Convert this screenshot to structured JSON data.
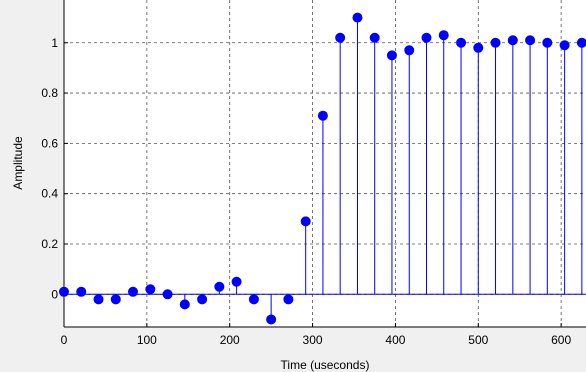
{
  "chart_data": {
    "type": "stem",
    "xlabel": "Time (useconds)",
    "ylabel": "Amplitude",
    "title": "",
    "xlim": [
      0,
      630
    ],
    "ylim": [
      -0.13,
      1.17
    ],
    "grid": true,
    "xticks": [
      0,
      100,
      200,
      300,
      400,
      500,
      600
    ],
    "yticks": [
      0,
      0.2,
      0.4,
      0.6,
      0.8,
      1
    ],
    "ytick_labels": [
      "0",
      "0.2",
      "0.4",
      "0.6",
      "0.8",
      "1"
    ],
    "x": [
      0,
      20.8,
      41.7,
      62.5,
      83.3,
      104.2,
      125,
      145.8,
      166.7,
      187.5,
      208.3,
      229.2,
      250,
      270.8,
      291.7,
      312.5,
      333.3,
      354.2,
      375,
      395.8,
      416.7,
      437.5,
      458.3,
      479.2,
      500,
      520.8,
      541.7,
      562.5,
      583.3,
      604.2,
      625
    ],
    "y": [
      0.01,
      0.01,
      -0.02,
      -0.02,
      0.01,
      0.02,
      0.0,
      -0.04,
      -0.02,
      0.03,
      0.05,
      -0.02,
      -0.1,
      -0.02,
      0.29,
      0.71,
      1.02,
      1.1,
      1.02,
      0.95,
      0.97,
      1.02,
      1.03,
      1.0,
      0.98,
      1.0,
      1.01,
      1.01,
      1.0,
      0.99,
      1.0
    ],
    "color": "#0000ff"
  }
}
